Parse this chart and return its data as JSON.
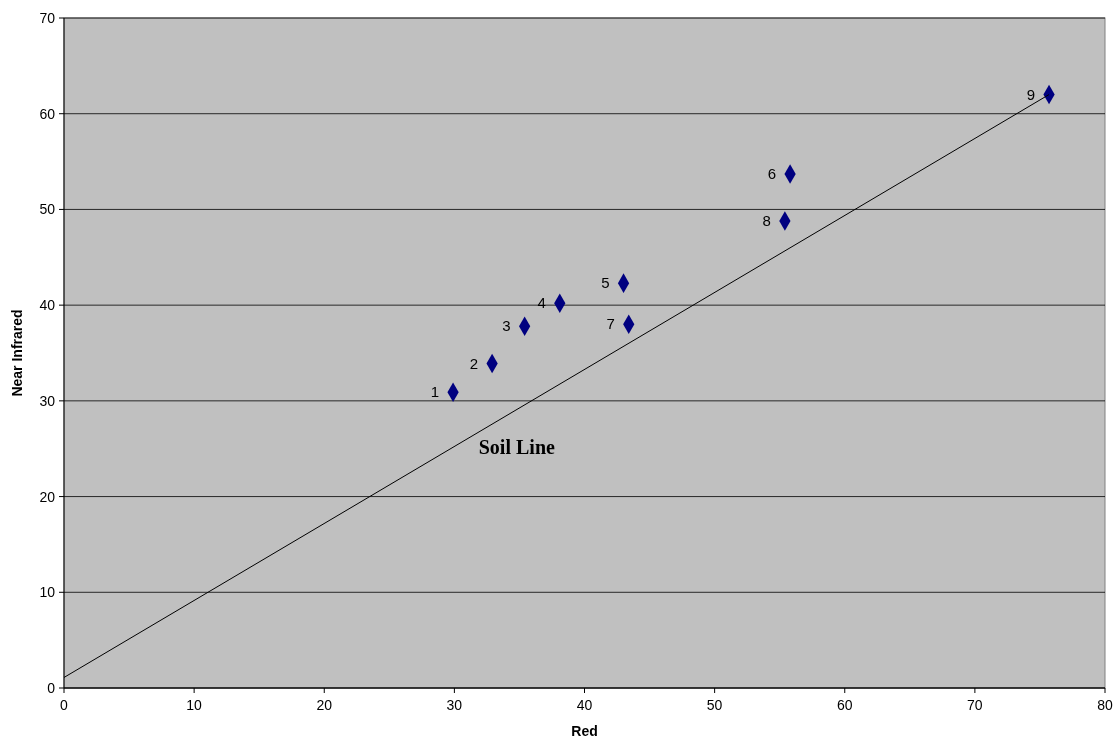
{
  "chart_data": {
    "type": "scatter",
    "xlabel": "Red",
    "ylabel": "Near Infrared",
    "xlim": [
      0,
      80
    ],
    "ylim": [
      0,
      70
    ],
    "xticks": [
      0,
      10,
      20,
      30,
      40,
      50,
      60,
      70,
      80
    ],
    "yticks": [
      0,
      10,
      20,
      30,
      40,
      50,
      60,
      70
    ],
    "grid": "y",
    "marker": "diamond",
    "series": [
      {
        "color": "#000080",
        "x": [
          29.9,
          32.9,
          35.4,
          38.1,
          43.0,
          55.8,
          43.4,
          55.4,
          75.7
        ],
        "values": [
          30.9,
          33.9,
          37.8,
          40.2,
          42.3,
          53.7,
          38.0,
          48.8,
          62.0
        ]
      },
      {
        "type": "line",
        "color": "#000000",
        "line_style": "solid",
        "marker": "none",
        "x": [
          0,
          75.7
        ],
        "values": [
          1.1,
          62.0
        ]
      }
    ],
    "annotations": [
      "Soil Line",
      {
        "text": "1",
        "x": 29.9,
        "y": 30.9
      },
      {
        "text": "2",
        "x": 32.9,
        "y": 33.9
      },
      {
        "text": "3",
        "x": 35.4,
        "y": 37.8
      },
      {
        "text": "4",
        "x": 38.1,
        "y": 40.2
      },
      {
        "text": "5",
        "x": 43.0,
        "y": 42.3
      },
      {
        "text": "6",
        "x": 55.8,
        "y": 53.7
      },
      {
        "text": "7",
        "x": 43.4,
        "y": 38.0
      },
      {
        "text": "8",
        "x": 55.4,
        "y": 48.8
      },
      {
        "text": "9",
        "x": 75.7,
        "y": 62.0
      }
    ]
  }
}
